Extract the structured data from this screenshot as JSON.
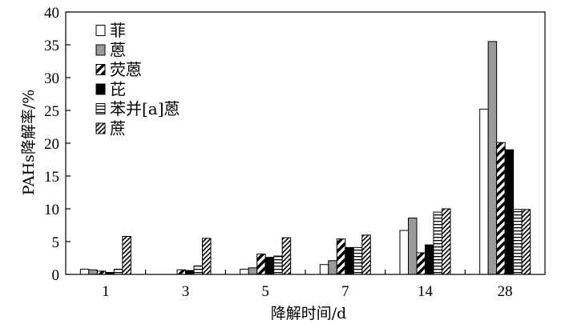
{
  "chart_data": {
    "type": "bar",
    "xlabel": "降解时间/d",
    "ylabel": "PAHs降解率/%",
    "categories": [
      "1",
      "3",
      "5",
      "7",
      "14",
      "28"
    ],
    "ylim": [
      0,
      40
    ],
    "yticks": [
      0,
      5,
      10,
      15,
      20,
      25,
      30,
      35,
      40
    ],
    "grid": false,
    "legend_position": "top-left",
    "series": [
      {
        "name": "菲",
        "pattern": "white",
        "values": [
          0.8,
          0.0,
          0.8,
          1.5,
          6.7,
          25.2
        ]
      },
      {
        "name": "蒽",
        "pattern": "gray",
        "values": [
          0.7,
          0.0,
          1.0,
          2.1,
          8.6,
          35.5
        ]
      },
      {
        "name": "荧蒽",
        "pattern": "diagonal",
        "values": [
          0.5,
          0.7,
          3.1,
          5.4,
          3.3,
          20.1
        ]
      },
      {
        "name": "芘",
        "pattern": "black",
        "values": [
          0.3,
          0.6,
          2.6,
          4.1,
          4.5,
          19.0
        ]
      },
      {
        "name": "苯并[a]蒽",
        "pattern": "horizontal",
        "values": [
          0.8,
          1.3,
          2.8,
          4.1,
          9.5,
          9.9
        ]
      },
      {
        "name": "蔗",
        "pattern": "dense-diagonal",
        "values": [
          5.8,
          5.5,
          5.6,
          6.0,
          10.0,
          9.9
        ]
      }
    ]
  }
}
